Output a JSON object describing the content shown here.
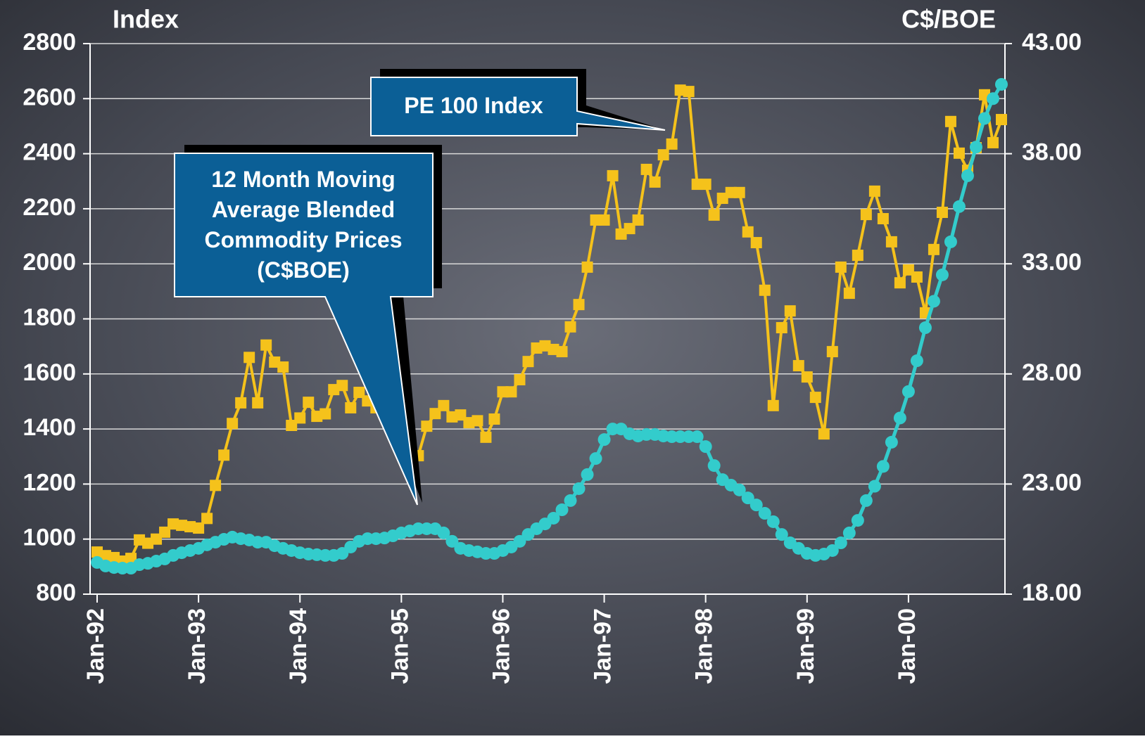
{
  "chart_data": {
    "type": "line",
    "ylabel": "Index",
    "y2label": "C$/BOE",
    "categories": [
      "Jan-92",
      null,
      null,
      null,
      null,
      null,
      null,
      null,
      null,
      null,
      null,
      null,
      "Jan-93",
      null,
      null,
      null,
      null,
      null,
      null,
      null,
      null,
      null,
      null,
      null,
      "Jan-94",
      null,
      null,
      null,
      null,
      null,
      null,
      null,
      null,
      null,
      null,
      null,
      "Jan-95",
      null,
      null,
      null,
      null,
      null,
      null,
      null,
      null,
      null,
      null,
      null,
      "Jan-96",
      null,
      null,
      null,
      null,
      null,
      null,
      null,
      null,
      null,
      null,
      null,
      "Jan-97",
      null,
      null,
      null,
      null,
      null,
      null,
      null,
      null,
      null,
      null,
      null,
      "Jan-98",
      null,
      null,
      null,
      null,
      null,
      null,
      null,
      null,
      null,
      null,
      null,
      "Jan-99",
      null,
      null,
      null,
      null,
      null,
      null,
      null,
      null,
      null,
      null,
      null,
      "Jan-00",
      null,
      null,
      null,
      null,
      null,
      null,
      null,
      null,
      null,
      null,
      null
    ],
    "ylim": [
      800,
      2800
    ],
    "yticks": [
      800,
      1000,
      1200,
      1400,
      1600,
      1800,
      2000,
      2200,
      2400,
      2600,
      2800
    ],
    "y2lim": [
      18,
      43
    ],
    "y2ticks": [
      {
        "value": 18,
        "label": "18.00"
      },
      {
        "value": 23,
        "label": "23.00"
      },
      {
        "value": 28,
        "label": "28.00"
      },
      {
        "value": 33,
        "label": "33.00"
      },
      {
        "value": 38,
        "label": "38.00"
      },
      {
        "value": 43,
        "label": "43.00"
      }
    ],
    "grid": true,
    "series": [
      {
        "name": "PE 100 Index",
        "color": "#f5c21b",
        "marker": "square",
        "values": [
          953,
          940,
          933,
          920,
          930,
          997,
          985,
          1000,
          1025,
          1055,
          1050,
          1045,
          1040,
          1075,
          1195,
          1305,
          1420,
          1495,
          1660,
          1495,
          1705,
          1643,
          1625,
          1413,
          1440,
          1497,
          1446,
          1455,
          1543,
          1558,
          1477,
          1533,
          1502,
          1477,
          1460,
          1440,
          1400,
          1350,
          1303,
          1410,
          1456,
          1485,
          1444,
          1451,
          1423,
          1430,
          1370,
          1436,
          1535,
          1535,
          1579,
          1645,
          1694,
          1702,
          1689,
          1681,
          1771,
          1852,
          1988,
          2159,
          2159,
          2320,
          2108,
          2128,
          2159,
          2343,
          2297,
          2396,
          2435,
          2631,
          2626,
          2289,
          2289,
          2177,
          2238,
          2259,
          2259,
          2116,
          2077,
          1904,
          1485,
          1768,
          1829,
          1630,
          1589,
          1515,
          1382,
          1681,
          1988,
          1893,
          2031,
          2179,
          2264,
          2164,
          2080,
          1931,
          1978,
          1952,
          1822,
          2052,
          2187,
          2517,
          2402,
          2340,
          2422,
          2614,
          2440,
          2524
        ]
      },
      {
        "name": "12 Month Moving Average Blended Commodity Prices (C$BOE)",
        "color": "#33cccc",
        "marker": "circle",
        "axis": "y2",
        "values": [
          19.44,
          19.28,
          19.21,
          19.18,
          19.18,
          19.34,
          19.4,
          19.5,
          19.6,
          19.76,
          19.88,
          19.98,
          20.08,
          20.24,
          20.36,
          20.49,
          20.59,
          20.52,
          20.46,
          20.36,
          20.36,
          20.2,
          20.08,
          19.98,
          19.88,
          19.82,
          19.79,
          19.76,
          19.76,
          19.85,
          20.14,
          20.4,
          20.52,
          20.52,
          20.55,
          20.65,
          20.78,
          20.87,
          20.97,
          20.97,
          20.97,
          20.78,
          20.4,
          20.08,
          19.98,
          19.92,
          19.85,
          19.85,
          19.98,
          20.14,
          20.4,
          20.71,
          20.97,
          21.19,
          21.45,
          21.83,
          22.25,
          22.79,
          23.43,
          24.16,
          25.02,
          25.5,
          25.5,
          25.28,
          25.18,
          25.25,
          25.25,
          25.18,
          25.15,
          25.15,
          25.15,
          25.15,
          24.7,
          23.84,
          23.2,
          22.95,
          22.73,
          22.37,
          22.05,
          21.67,
          21.29,
          20.71,
          20.33,
          20.08,
          19.85,
          19.76,
          19.82,
          19.98,
          20.33,
          20.78,
          21.35,
          22.25,
          22.9,
          23.8,
          24.9,
          26.0,
          27.2,
          28.6,
          30.1,
          31.3,
          32.5,
          34.0,
          35.6,
          37.0,
          38.3,
          39.6,
          40.5,
          41.15
        ]
      }
    ],
    "annotations": [
      {
        "lines": [
          "PE 100 Index"
        ]
      },
      {
        "lines": [
          "12 Month Moving",
          "Average Blended",
          "Commodity Prices",
          "(C$BOE)"
        ]
      }
    ]
  }
}
